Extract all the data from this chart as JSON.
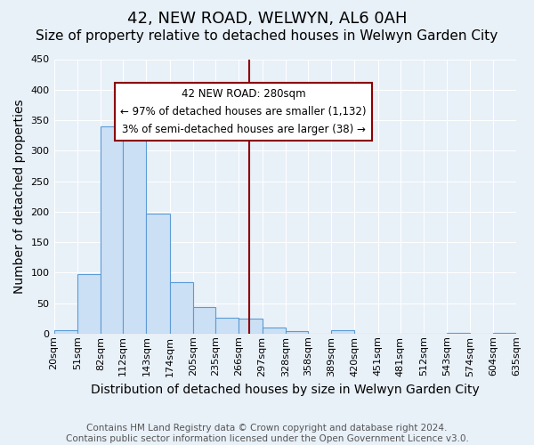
{
  "title": "42, NEW ROAD, WELWYN, AL6 0AH",
  "subtitle": "Size of property relative to detached houses in Welwyn Garden City",
  "xlabel": "Distribution of detached houses by size in Welwyn Garden City",
  "ylabel": "Number of detached properties",
  "footnote1": "Contains HM Land Registry data © Crown copyright and database right 2024.",
  "footnote2": "Contains public sector information licensed under the Open Government Licence v3.0.",
  "bar_edges": [
    20,
    51,
    82,
    112,
    143,
    174,
    205,
    235,
    266,
    297,
    328,
    358,
    389,
    420,
    451,
    481,
    512,
    543,
    574,
    604,
    635
  ],
  "bar_heights": [
    5,
    98,
    340,
    338,
    197,
    85,
    43,
    26,
    25,
    10,
    4,
    0,
    5,
    0,
    0,
    0,
    0,
    1,
    0,
    1
  ],
  "bar_color": "#cce0f5",
  "bar_edgecolor": "#5b9bd5",
  "vline_x": 280,
  "vline_color": "#8b0000",
  "annotation_line1": "42 NEW ROAD: 280sqm",
  "annotation_line2": "← 97% of detached houses are smaller (1,132)",
  "annotation_line3": "3% of semi-detached houses are larger (38) →",
  "annotation_box_facecolor": "white",
  "annotation_box_edgecolor": "#8b0000",
  "ylim": [
    0,
    450
  ],
  "yticks": [
    0,
    50,
    100,
    150,
    200,
    250,
    300,
    350,
    400,
    450
  ],
  "tick_labels": [
    "20sqm",
    "51sqm",
    "82sqm",
    "112sqm",
    "143sqm",
    "174sqm",
    "205sqm",
    "235sqm",
    "266sqm",
    "297sqm",
    "328sqm",
    "358sqm",
    "389sqm",
    "420sqm",
    "451sqm",
    "481sqm",
    "512sqm",
    "543sqm",
    "574sqm",
    "604sqm",
    "635sqm"
  ],
  "bg_color": "#e8f0f8",
  "plot_bg_color": "#e8f0f8",
  "grid_color": "white",
  "title_fontsize": 13,
  "subtitle_fontsize": 11,
  "label_fontsize": 10,
  "tick_fontsize": 8,
  "footnote_fontsize": 7.5
}
